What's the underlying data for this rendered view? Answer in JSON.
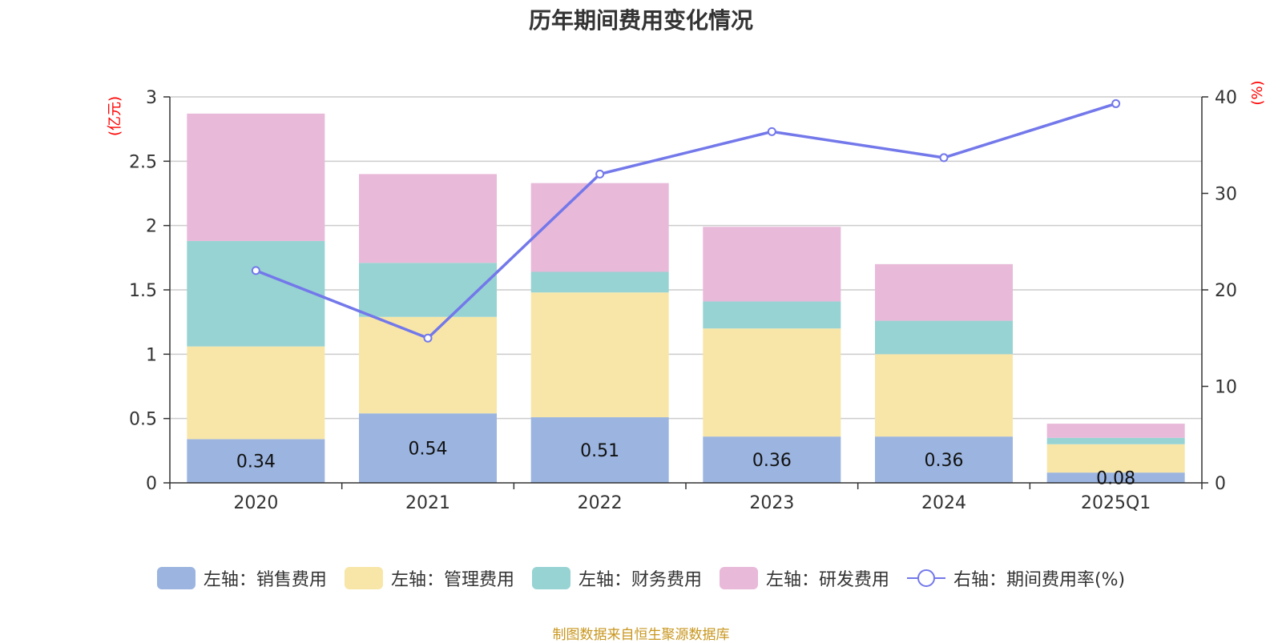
{
  "title": "历年期间费用变化情况",
  "source": "制图数据来自恒生聚源数据库",
  "chart_data": {
    "type": "bar",
    "stacked": true,
    "categories": [
      "2020",
      "2021",
      "2022",
      "2023",
      "2024",
      "2025Q1"
    ],
    "left_axis": {
      "unit": "(亿元)",
      "ylim": [
        0,
        3
      ],
      "ticks": [
        "0",
        "0.5",
        "1",
        "1.5",
        "2",
        "2.5",
        "3"
      ]
    },
    "right_axis": {
      "unit": "(%)",
      "ylim": [
        0,
        40
      ],
      "ticks": [
        "0",
        "10",
        "20",
        "30",
        "40"
      ]
    },
    "series": [
      {
        "name": "左轴：销售费用",
        "axis": "left",
        "type": "bar",
        "color": "#9bb5e0",
        "values": [
          0.34,
          0.54,
          0.51,
          0.36,
          0.36,
          0.08
        ],
        "labels": [
          "0.34",
          "0.54",
          "0.51",
          "0.36",
          "0.36",
          "0.08"
        ]
      },
      {
        "name": "左轴：管理费用",
        "axis": "left",
        "type": "bar",
        "color": "#f8e6a8",
        "values": [
          0.72,
          0.75,
          0.97,
          0.84,
          0.64,
          0.22
        ]
      },
      {
        "name": "左轴：财务费用",
        "axis": "left",
        "type": "bar",
        "color": "#98d3d3",
        "values": [
          0.82,
          0.42,
          0.16,
          0.21,
          0.26,
          0.05
        ]
      },
      {
        "name": "左轴：研发费用",
        "axis": "left",
        "type": "bar",
        "color": "#e8b9d9",
        "values": [
          0.99,
          0.69,
          0.69,
          0.58,
          0.44,
          0.11
        ]
      },
      {
        "name": "右轴：期间费用率(%)",
        "axis": "right",
        "type": "line",
        "color": "#7378ea",
        "values": [
          22.0,
          15.0,
          32.0,
          36.4,
          33.7,
          39.3
        ]
      }
    ],
    "grid": true,
    "legend_position": "bottom"
  }
}
